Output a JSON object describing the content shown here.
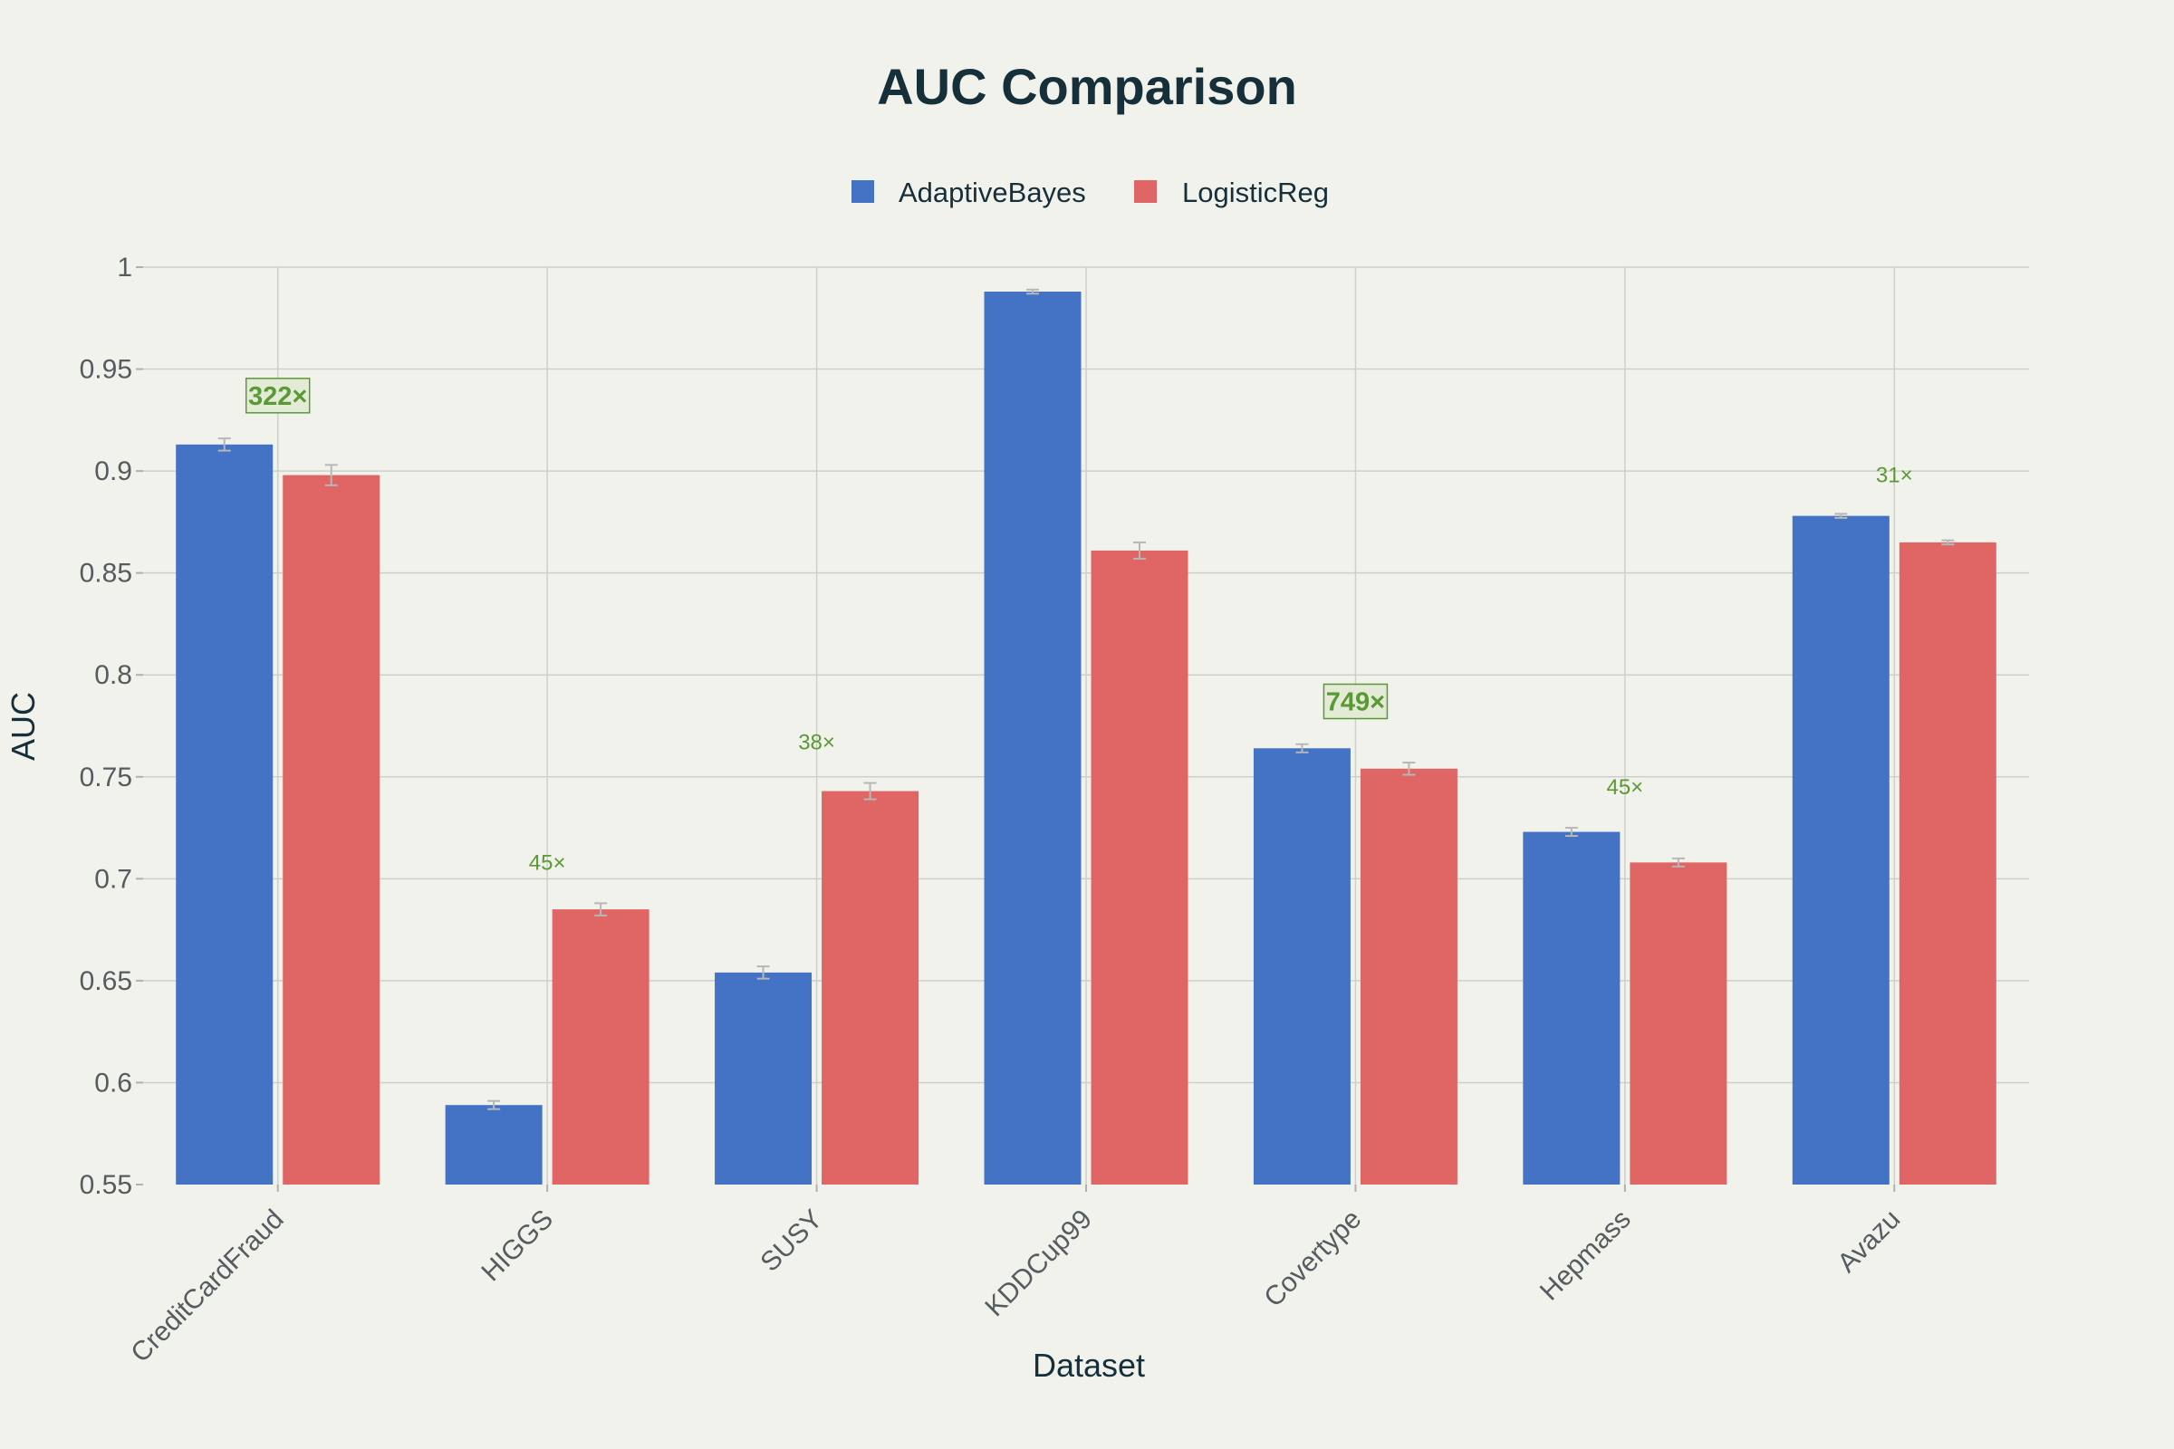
{
  "colors": {
    "background": "#f2f2ed",
    "adaptive": "#4472c4",
    "logistic": "#e06666",
    "annotation": "#5a9a35"
  },
  "chart_data": {
    "type": "bar",
    "title": "AUC Comparison",
    "xlabel": "Dataset",
    "ylabel": "AUC",
    "ylim": [
      0.55,
      1.0
    ],
    "yticks": [
      "0.55",
      "0.6",
      "0.65",
      "0.7",
      "0.75",
      "0.8",
      "0.85",
      "0.9",
      "0.95",
      "1"
    ],
    "grid": true,
    "legend_position": "top-center",
    "categories": [
      "CreditCardFraud",
      "HIGGS",
      "SUSY",
      "KDDCup99",
      "Covertype",
      "Hepmass",
      "Avazu"
    ],
    "series": [
      {
        "name": "AdaptiveBayes",
        "color": "#4472c4",
        "values": [
          0.913,
          0.589,
          0.654,
          0.988,
          0.764,
          0.723,
          0.878
        ],
        "errors": [
          0.003,
          0.002,
          0.003,
          0.001,
          0.002,
          0.002,
          0.001
        ]
      },
      {
        "name": "LogisticReg",
        "color": "#e06666",
        "values": [
          0.898,
          0.685,
          0.743,
          0.861,
          0.754,
          0.708,
          0.865
        ],
        "errors": [
          0.005,
          0.003,
          0.004,
          0.004,
          0.003,
          0.002,
          0.001
        ]
      }
    ],
    "annotations": [
      {
        "category": "CreditCardFraud",
        "text": "322×",
        "y": 0.937,
        "boxed": true
      },
      {
        "category": "HIGGS",
        "text": "45×",
        "y": 0.708,
        "boxed": false
      },
      {
        "category": "SUSY",
        "text": "38×",
        "y": 0.767,
        "boxed": false
      },
      {
        "category": "Covertype",
        "text": "749×",
        "y": 0.787,
        "boxed": true
      },
      {
        "category": "Hepmass",
        "text": "45×",
        "y": 0.745,
        "boxed": false
      },
      {
        "category": "Avazu",
        "text": "31×",
        "y": 0.898,
        "boxed": false
      }
    ]
  }
}
